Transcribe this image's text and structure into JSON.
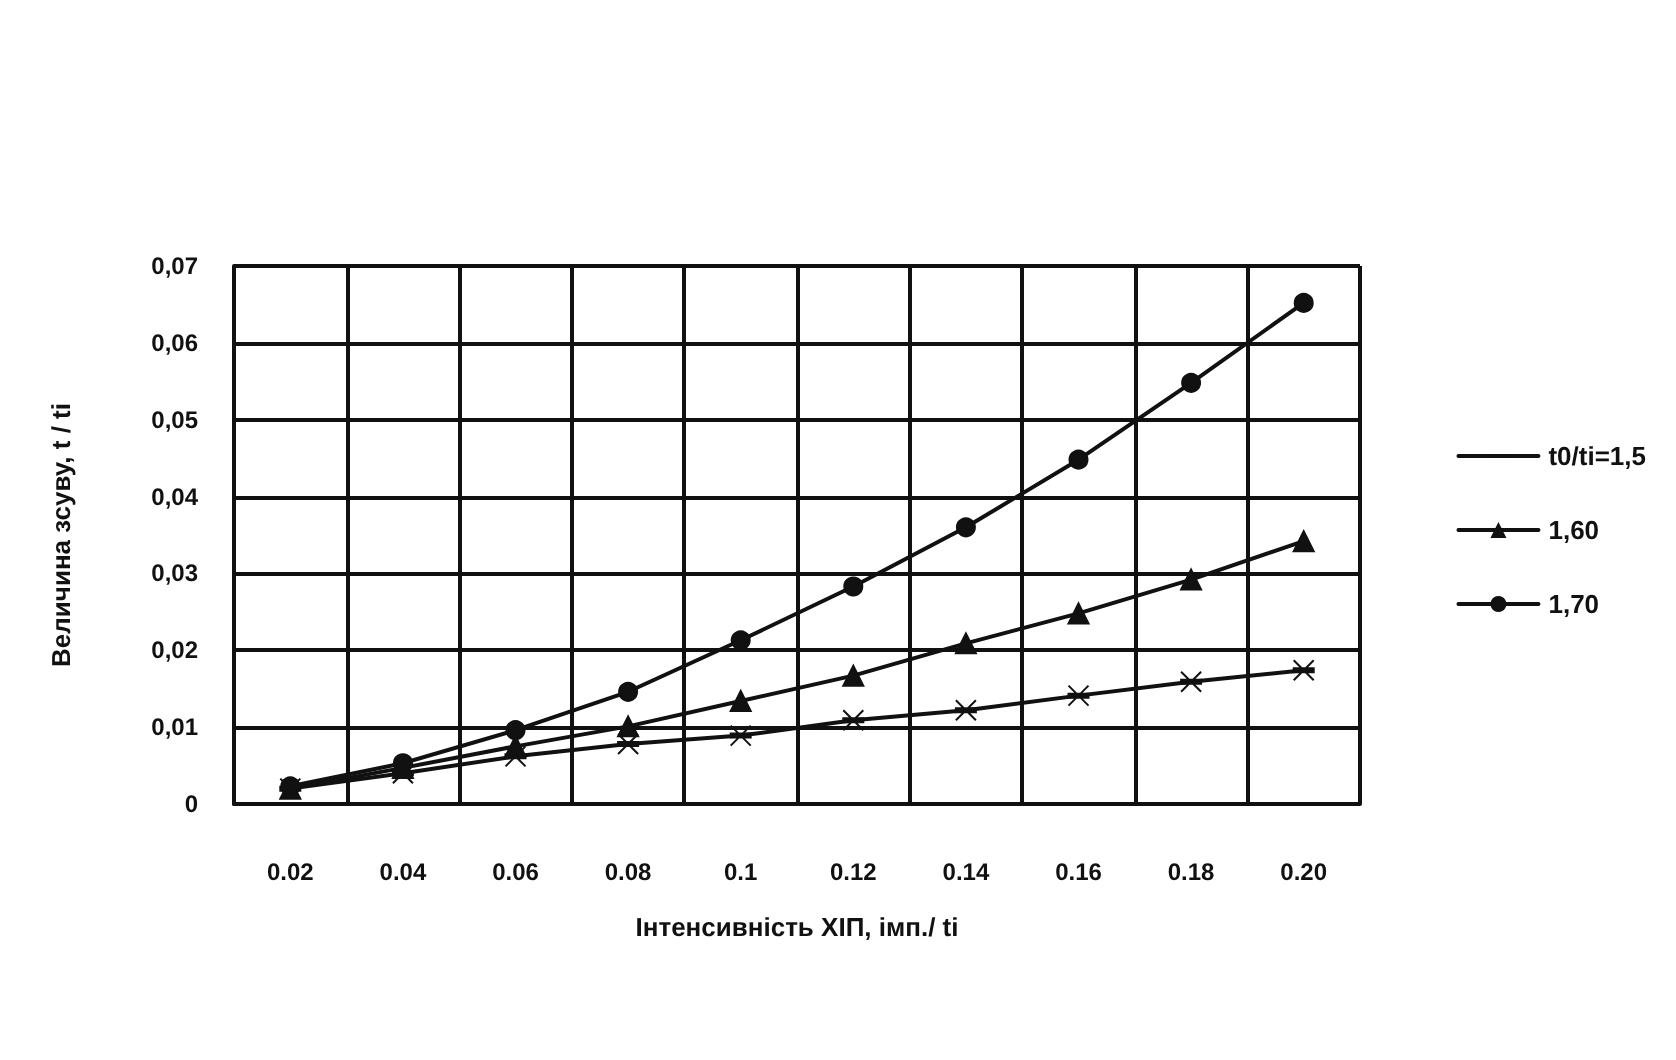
{
  "chart_data": {
    "type": "line",
    "xlabel": "Інтенсивність ХІП, імп./ ti",
    "ylabel": "Величина зсуву, t / ti",
    "categories": [
      "0.02",
      "0.04",
      "0.06",
      "0.08",
      "0.1",
      "0.12",
      "0.14",
      "0.16",
      "0.18",
      "0.20"
    ],
    "series": [
      {
        "name": "t0/ti=1,5",
        "color": "#111111",
        "marker": "cross",
        "values": [
          0.002,
          0.004,
          0.0062,
          0.0078,
          0.0089,
          0.0109,
          0.0122,
          0.0141,
          0.0159,
          0.0174
        ]
      },
      {
        "name": "1,60",
        "color": "#111111",
        "marker": "triangle",
        "values": [
          0.002,
          0.0047,
          0.0075,
          0.0101,
          0.0134,
          0.0167,
          0.0209,
          0.0248,
          0.0292,
          0.0342
        ]
      },
      {
        "name": "1,70",
        "color": "#111111",
        "marker": "circle",
        "values": [
          0.0023,
          0.0053,
          0.0096,
          0.0146,
          0.0213,
          0.0283,
          0.036,
          0.0448,
          0.0548,
          0.0652
        ]
      }
    ],
    "ylim": [
      0,
      0.07
    ],
    "yticks": [
      {
        "value": 0,
        "label": "0"
      },
      {
        "value": 0.01,
        "label": "0,01"
      },
      {
        "value": 0.02,
        "label": "0,02"
      },
      {
        "value": 0.03,
        "label": "0,03"
      },
      {
        "value": 0.04,
        "label": "0,04"
      },
      {
        "value": 0.05,
        "label": "0,05"
      },
      {
        "value": 0.06,
        "label": "0,06"
      },
      {
        "value": 0.07,
        "label": "0,07"
      }
    ],
    "grid": true,
    "legend": "right",
    "line_style": "solid"
  }
}
